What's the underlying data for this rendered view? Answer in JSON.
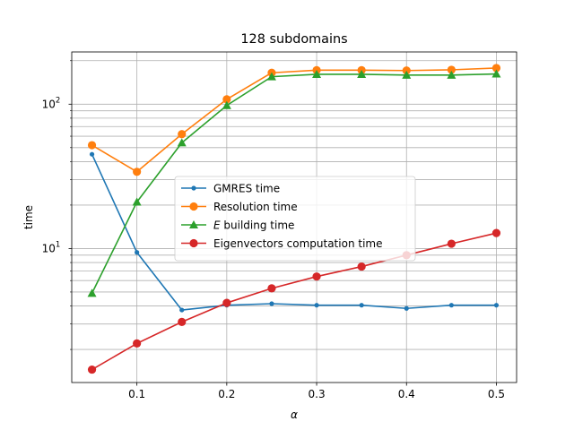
{
  "chart_data": {
    "type": "line",
    "title": "128 subdomains",
    "xlabel": "α",
    "ylabel": "time",
    "y_scale": "log",
    "xlim": [
      0.0275,
      0.5225
    ],
    "ylim": [
      1.18,
      230
    ],
    "x_ticks": [
      0.1,
      0.2,
      0.3,
      0.4,
      0.5
    ],
    "x_tick_labels": [
      "0.1",
      "0.2",
      "0.3",
      "0.4",
      "0.5"
    ],
    "y_major_ticks": [
      10,
      100
    ],
    "y_major_tick_labels": [
      {
        "base": "10",
        "exp": "1"
      },
      {
        "base": "10",
        "exp": "2"
      }
    ],
    "y_minor_ticks": [
      2,
      3,
      4,
      5,
      6,
      7,
      8,
      9,
      20,
      30,
      40,
      50,
      60,
      70,
      80,
      90,
      200
    ],
    "grid": "major x, major and minor y",
    "legend_position": "center",
    "x": [
      0.05,
      0.1,
      0.15,
      0.2,
      0.25,
      0.3,
      0.35,
      0.4,
      0.45,
      0.5
    ],
    "series": [
      {
        "name": "GMRES time",
        "color": "#1f77b4",
        "marker": "point",
        "values": [
          45,
          9.4,
          3.75,
          4.05,
          4.15,
          4.05,
          4.05,
          3.85,
          4.05,
          4.05
        ]
      },
      {
        "name": "Resolution time",
        "color": "#ff7f0e",
        "marker": "circle",
        "values": [
          52,
          34,
          62,
          108,
          165,
          172,
          172,
          171,
          173,
          178
        ]
      },
      {
        "name": "E building time",
        "legend_parts": [
          {
            "text": "E",
            "italic": true
          },
          {
            "text": " building time",
            "italic": false
          }
        ],
        "color": "#2ca02c",
        "marker": "triangle",
        "values": [
          4.9,
          21,
          54,
          98,
          155,
          161,
          161,
          159,
          159,
          162
        ]
      },
      {
        "name": "Eigenvectors computation time",
        "color": "#d62728",
        "marker": "circle",
        "values": [
          1.45,
          2.2,
          3.1,
          4.2,
          5.3,
          6.4,
          7.5,
          9.0,
          10.8,
          12.8
        ]
      }
    ]
  }
}
